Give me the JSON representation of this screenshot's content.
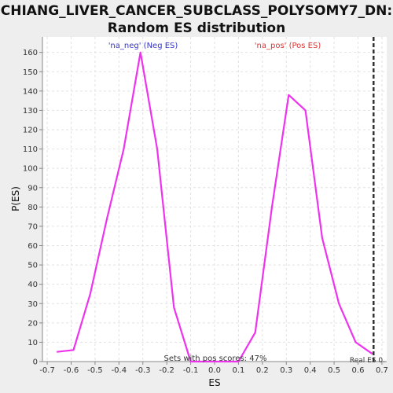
{
  "chart_data": {
    "type": "line",
    "title": "CHIANG_LIVER_CANCER_SUBCLASS_POLYSOMY7_DN: Random ES distribution",
    "title_lines": [
      "CHIANG_LIVER_CANCER_SUBCLASS_POLYSOMY7_DN:",
      "Random ES distribution"
    ],
    "xlabel": "ES",
    "ylabel": "P(ES)",
    "xlim": [
      -0.72,
      0.72
    ],
    "ylim": [
      0,
      168
    ],
    "xticks": [
      -0.7,
      -0.6,
      -0.5,
      -0.4,
      -0.3,
      -0.2,
      -0.1,
      0.0,
      0.1,
      0.2,
      0.3,
      0.4,
      0.5,
      0.6,
      0.7
    ],
    "yticks": [
      0,
      10,
      20,
      30,
      40,
      50,
      60,
      70,
      80,
      90,
      100,
      110,
      120,
      130,
      140,
      150,
      160
    ],
    "grid": true,
    "series": [
      {
        "color": "#ee33ee",
        "x": [
          -0.66,
          -0.59,
          -0.52,
          -0.45,
          -0.38,
          -0.31,
          -0.24,
          -0.17,
          -0.1,
          0.0,
          0.1,
          0.17,
          0.24,
          0.31,
          0.38,
          0.45,
          0.52,
          0.59,
          0.66
        ],
        "y": [
          5,
          6,
          35,
          74,
          110,
          160,
          110,
          28,
          0,
          0,
          0,
          15,
          80,
          138,
          130,
          64,
          30,
          10,
          4
        ]
      }
    ],
    "annotations": {
      "neg_label": "'na_neg' (Neg ES)",
      "pos_label": "'na_pos' (Pos ES)",
      "sets_label": "Sets with pos scores: 47%",
      "real_es_label": "Real ES 0.",
      "real_es_x": 0.665
    },
    "colors": {
      "line": "#ee33ee",
      "neg_label": "#3333cc",
      "pos_label": "#dd3333",
      "real_es_line": "#333333",
      "plot_bg": "#ffffff",
      "page_bg": "#eeeeee"
    }
  }
}
